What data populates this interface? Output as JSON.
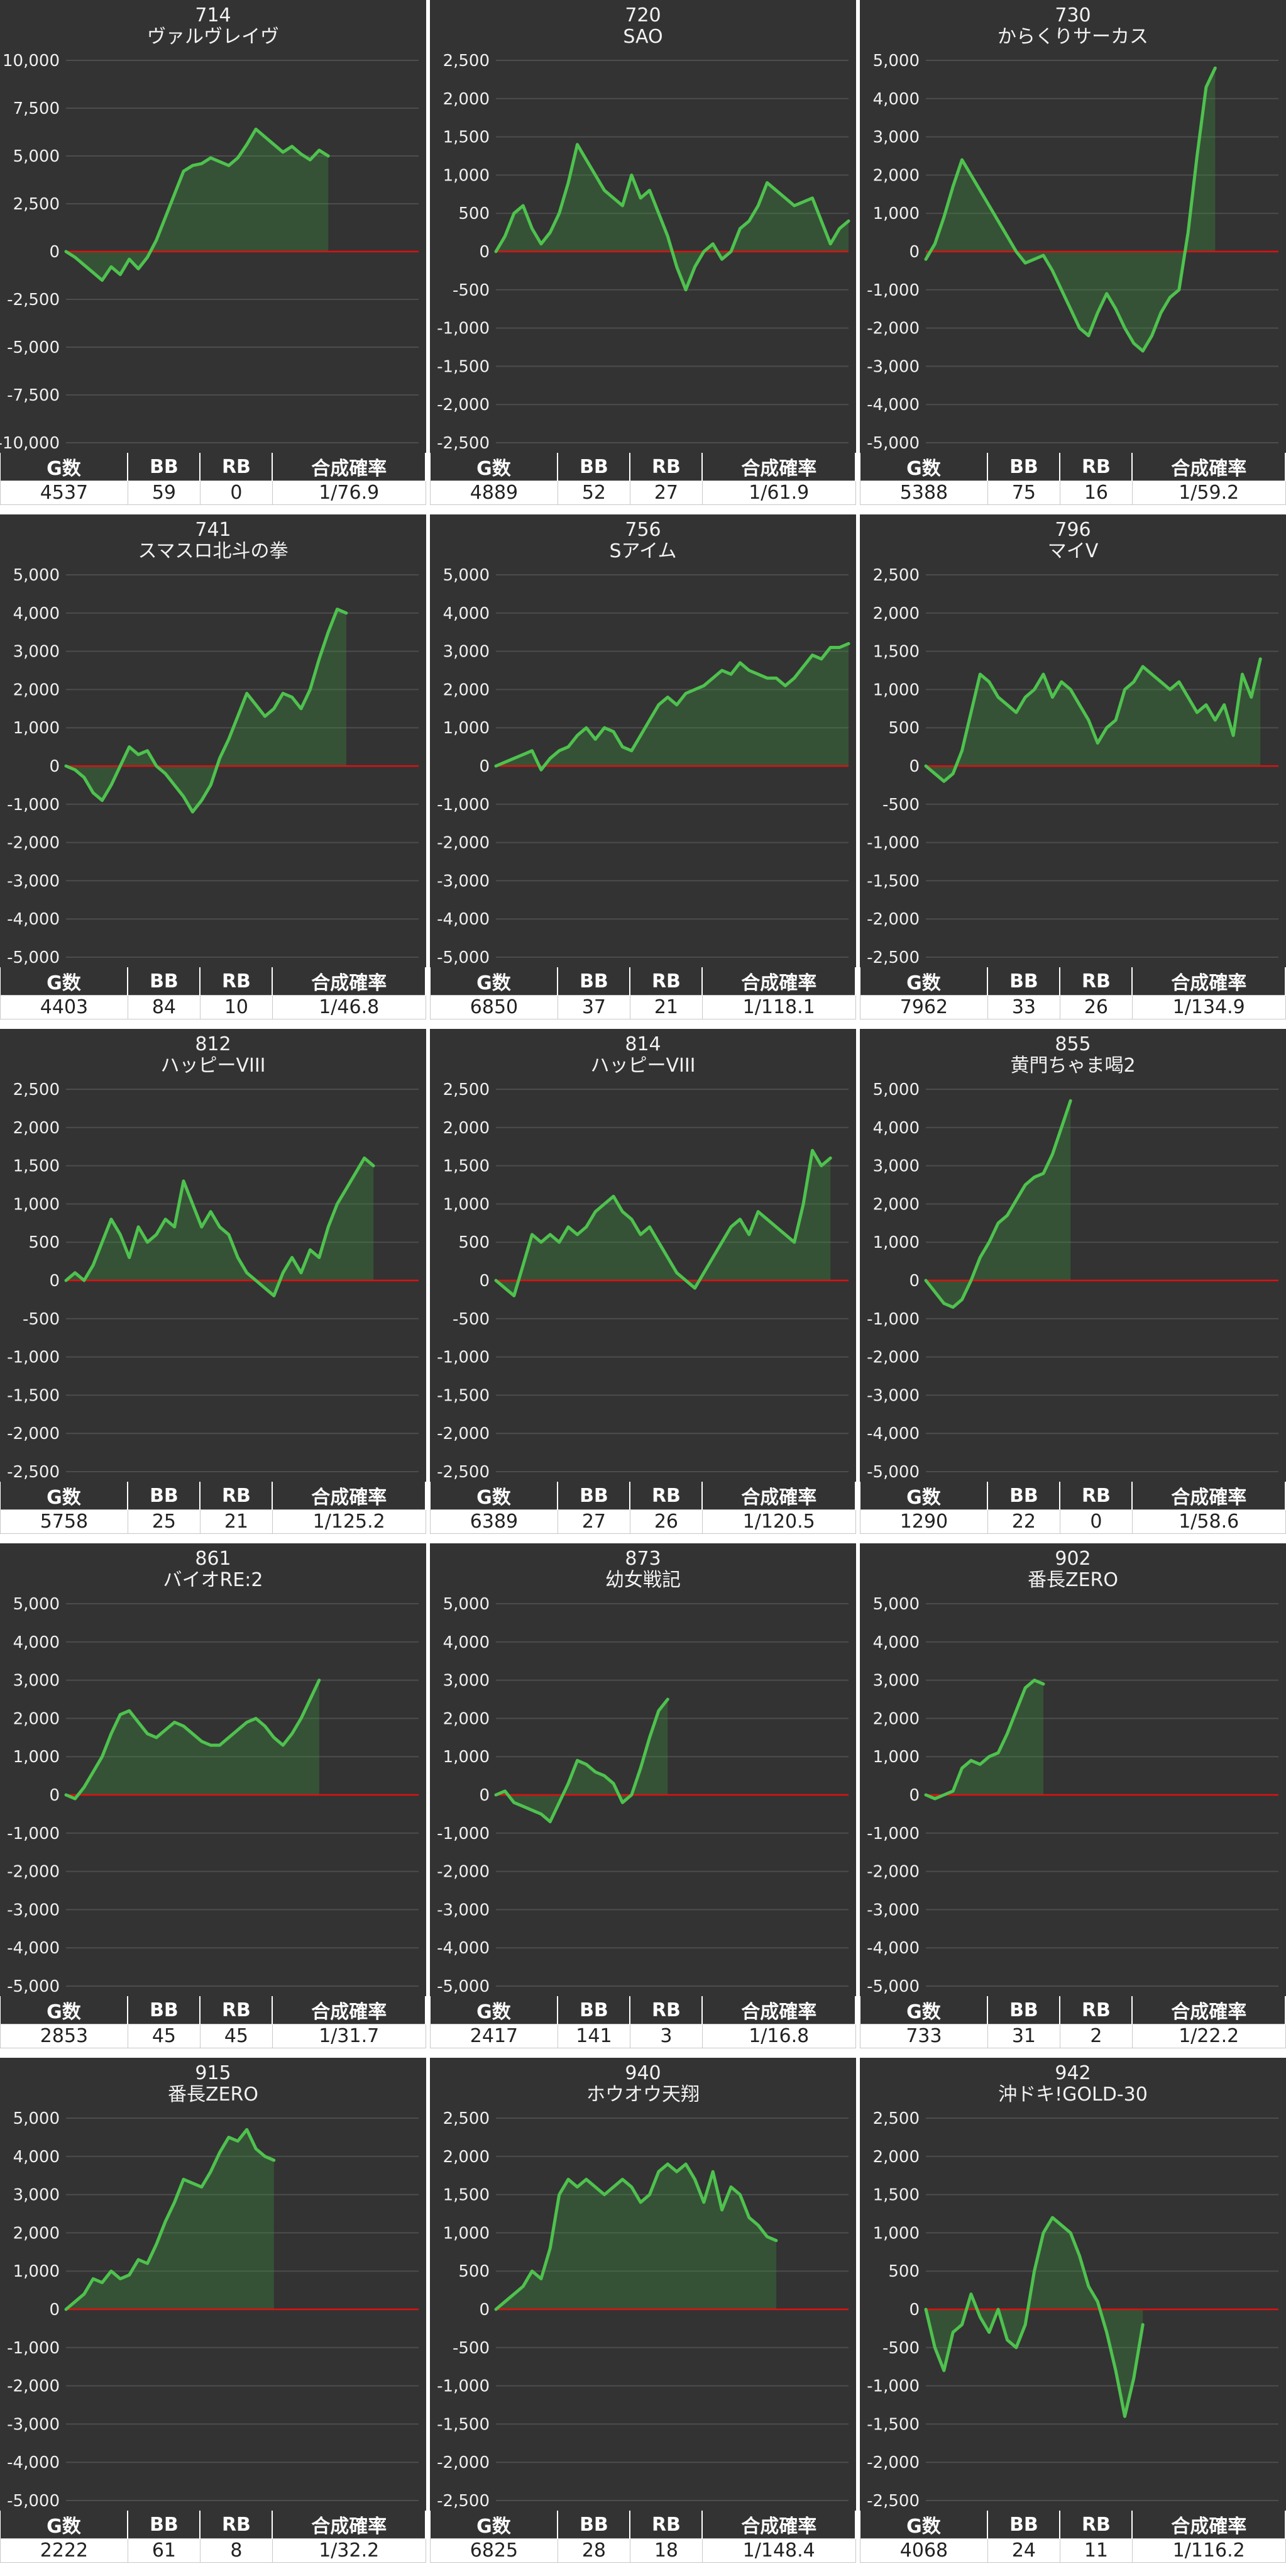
{
  "table_headers": [
    "G数",
    "BB",
    "RB",
    "合成確率"
  ],
  "colors": {
    "background": "#333333",
    "line": "#4ec24e",
    "fill": "rgba(62,150,62,0.32)",
    "zero_line": "#e01010",
    "grid": "#4d4d4d"
  },
  "chart_data": [
    {
      "type": "area",
      "id": "714",
      "title": "ヴァルヴレイヴ",
      "ylim": [
        -10000,
        10000
      ],
      "yticks": [
        "10,000",
        "7,500",
        "5,000",
        "2,500",
        "0",
        "-2,500",
        "-5,000",
        "-7,500",
        "-10,000"
      ],
      "values": [
        0,
        -300,
        -700,
        -1100,
        -1500,
        -800,
        -1200,
        -400,
        -900,
        -300,
        600,
        1800,
        3000,
        4200,
        4500,
        4600,
        4900,
        4700,
        4500,
        4900,
        5600,
        6400,
        6000,
        5600,
        5200,
        5500,
        5100,
        4800,
        5300,
        5000
      ],
      "stats": {
        "g": "4537",
        "bb": "59",
        "rb": "0",
        "prob": "1/76.9"
      }
    },
    {
      "type": "area",
      "id": "720",
      "title": "SAO",
      "ylim": [
        -2500,
        2500
      ],
      "yticks": [
        "2,500",
        "2,000",
        "1,500",
        "1,000",
        "500",
        "0",
        "-500",
        "-1,000",
        "-1,500",
        "-2,000",
        "-2,500"
      ],
      "values": [
        0,
        200,
        500,
        600,
        300,
        100,
        250,
        500,
        900,
        1400,
        1200,
        1000,
        800,
        700,
        600,
        1000,
        700,
        800,
        500,
        200,
        -200,
        -500,
        -200,
        0,
        100,
        -100,
        0,
        300,
        400,
        600,
        900,
        800,
        700,
        600,
        650,
        700,
        400,
        100,
        300,
        400
      ],
      "stats": {
        "g": "4889",
        "bb": "52",
        "rb": "27",
        "prob": "1/61.9"
      }
    },
    {
      "type": "area",
      "id": "730",
      "title": "からくりサーカス",
      "ylim": [
        -5000,
        5000
      ],
      "yticks": [
        "5,000",
        "4,000",
        "3,000",
        "2,000",
        "1,000",
        "0",
        "-1,000",
        "-2,000",
        "-3,000",
        "-4,000",
        "-5,000"
      ],
      "values": [
        -200,
        200,
        900,
        1700,
        2400,
        2000,
        1600,
        1200,
        800,
        400,
        0,
        -300,
        -200,
        -100,
        -500,
        -1000,
        -1500,
        -2000,
        -2200,
        -1600,
        -1100,
        -1500,
        -2000,
        -2400,
        -2600,
        -2200,
        -1600,
        -1200,
        -1000,
        500,
        2500,
        4300,
        4800
      ],
      "stats": {
        "g": "5388",
        "bb": "75",
        "rb": "16",
        "prob": "1/59.2"
      }
    },
    {
      "type": "area",
      "id": "741",
      "title": "スマスロ北斗の拳",
      "ylim": [
        -5000,
        5000
      ],
      "yticks": [
        "5,000",
        "4,000",
        "3,000",
        "2,000",
        "1,000",
        "0",
        "-1,000",
        "-2,000",
        "-3,000",
        "-4,000",
        "-5,000"
      ],
      "values": [
        0,
        -100,
        -300,
        -700,
        -900,
        -500,
        0,
        500,
        300,
        400,
        0,
        -200,
        -500,
        -800,
        -1200,
        -900,
        -500,
        200,
        700,
        1300,
        1900,
        1600,
        1300,
        1500,
        1900,
        1800,
        1500,
        2000,
        2800,
        3500,
        4100,
        4000
      ],
      "stats": {
        "g": "4403",
        "bb": "84",
        "rb": "10",
        "prob": "1/46.8"
      }
    },
    {
      "type": "area",
      "id": "756",
      "title": "Sアイム",
      "ylim": [
        -5000,
        5000
      ],
      "yticks": [
        "5,000",
        "4,000",
        "3,000",
        "2,000",
        "1,000",
        "0",
        "-1,000",
        "-2,000",
        "-3,000",
        "-4,000",
        "-5,000"
      ],
      "values": [
        0,
        100,
        200,
        300,
        400,
        -100,
        200,
        400,
        500,
        800,
        1000,
        700,
        1000,
        900,
        500,
        400,
        800,
        1200,
        1600,
        1800,
        1600,
        1900,
        2000,
        2100,
        2300,
        2500,
        2400,
        2700,
        2500,
        2400,
        2300,
        2300,
        2100,
        2300,
        2600,
        2900,
        2800,
        3100,
        3100,
        3200
      ],
      "stats": {
        "g": "6850",
        "bb": "37",
        "rb": "21",
        "prob": "1/118.1"
      }
    },
    {
      "type": "area",
      "id": "796",
      "title": "マイV",
      "ylim": [
        -2500,
        2500
      ],
      "yticks": [
        "2,500",
        "2,000",
        "1,500",
        "1,000",
        "500",
        "0",
        "-500",
        "-1,000",
        "-1,500",
        "-2,000",
        "-2,500"
      ],
      "values": [
        0,
        -100,
        -200,
        -100,
        200,
        700,
        1200,
        1100,
        900,
        800,
        700,
        900,
        1000,
        1200,
        900,
        1100,
        1000,
        800,
        600,
        300,
        500,
        600,
        1000,
        1100,
        1300,
        1200,
        1100,
        1000,
        1100,
        900,
        700,
        800,
        600,
        800,
        400,
        1200,
        900,
        1400
      ],
      "stats": {
        "g": "7962",
        "bb": "33",
        "rb": "26",
        "prob": "1/134.9"
      }
    },
    {
      "type": "area",
      "id": "812",
      "title": "ハッピーVIII",
      "ylim": [
        -2500,
        2500
      ],
      "yticks": [
        "2,500",
        "2,000",
        "1,500",
        "1,000",
        "500",
        "0",
        "-500",
        "-1,000",
        "-1,500",
        "-2,000",
        "-2,500"
      ],
      "values": [
        0,
        100,
        0,
        200,
        500,
        800,
        600,
        300,
        700,
        500,
        600,
        800,
        700,
        1300,
        1000,
        700,
        900,
        700,
        600,
        300,
        100,
        0,
        -100,
        -200,
        100,
        300,
        100,
        400,
        300,
        700,
        1000,
        1200,
        1400,
        1600,
        1500
      ],
      "stats": {
        "g": "5758",
        "bb": "25",
        "rb": "21",
        "prob": "1/125.2"
      }
    },
    {
      "type": "area",
      "id": "814",
      "title": "ハッピーVIII",
      "ylim": [
        -2500,
        2500
      ],
      "yticks": [
        "2,500",
        "2,000",
        "1,500",
        "1,000",
        "500",
        "0",
        "-500",
        "-1,000",
        "-1,500",
        "-2,000",
        "-2,500"
      ],
      "values": [
        0,
        -100,
        -200,
        200,
        600,
        500,
        600,
        500,
        700,
        600,
        700,
        900,
        1000,
        1100,
        900,
        800,
        600,
        700,
        500,
        300,
        100,
        0,
        -100,
        100,
        300,
        500,
        700,
        800,
        600,
        900,
        800,
        700,
        600,
        500,
        1000,
        1700,
        1500,
        1600
      ],
      "stats": {
        "g": "6389",
        "bb": "27",
        "rb": "26",
        "prob": "1/120.5"
      }
    },
    {
      "type": "area",
      "id": "855",
      "title": "黄門ちゃま喝2",
      "ylim": [
        -5000,
        5000
      ],
      "yticks": [
        "5,000",
        "4,000",
        "3,000",
        "2,000",
        "1,000",
        "0",
        "-1,000",
        "-2,000",
        "-3,000",
        "-4,000",
        "-5,000"
      ],
      "values": [
        0,
        -300,
        -600,
        -700,
        -500,
        0,
        600,
        1000,
        1500,
        1700,
        2100,
        2500,
        2700,
        2800,
        3300,
        4000,
        4700
      ],
      "stats": {
        "g": "1290",
        "bb": "22",
        "rb": "0",
        "prob": "1/58.6"
      }
    },
    {
      "type": "area",
      "id": "861",
      "title": "バイオRE:2",
      "ylim": [
        -5000,
        5000
      ],
      "yticks": [
        "5,000",
        "4,000",
        "3,000",
        "2,000",
        "1,000",
        "0",
        "-1,000",
        "-2,000",
        "-3,000",
        "-4,000",
        "-5,000"
      ],
      "values": [
        0,
        -100,
        200,
        600,
        1000,
        1600,
        2100,
        2200,
        1900,
        1600,
        1500,
        1700,
        1900,
        1800,
        1600,
        1400,
        1300,
        1300,
        1500,
        1700,
        1900,
        2000,
        1800,
        1500,
        1300,
        1600,
        2000,
        2500,
        3000
      ],
      "stats": {
        "g": "2853",
        "bb": "45",
        "rb": "45",
        "prob": "1/31.7"
      }
    },
    {
      "type": "area",
      "id": "873",
      "title": "幼女戦記",
      "ylim": [
        -5000,
        5000
      ],
      "yticks": [
        "5,000",
        "4,000",
        "3,000",
        "2,000",
        "1,000",
        "0",
        "-1,000",
        "-2,000",
        "-3,000",
        "-4,000",
        "-5,000"
      ],
      "values": [
        0,
        100,
        -200,
        -300,
        -400,
        -500,
        -700,
        -200,
        300,
        900,
        800,
        600,
        500,
        300,
        -200,
        0,
        700,
        1500,
        2200,
        2500
      ],
      "stats": {
        "g": "2417",
        "bb": "141",
        "rb": "3",
        "prob": "1/16.8"
      }
    },
    {
      "type": "area",
      "id": "902",
      "title": "番長ZERO",
      "ylim": [
        -5000,
        5000
      ],
      "yticks": [
        "5,000",
        "4,000",
        "3,000",
        "2,000",
        "1,000",
        "0",
        "-1,000",
        "-2,000",
        "-3,000",
        "-4,000",
        "-5,000"
      ],
      "values": [
        0,
        -100,
        0,
        100,
        700,
        900,
        800,
        1000,
        1100,
        1600,
        2200,
        2800,
        3000,
        2900
      ],
      "stats": {
        "g": "733",
        "bb": "31",
        "rb": "2",
        "prob": "1/22.2"
      }
    },
    {
      "type": "area",
      "id": "915",
      "title": "番長ZERO",
      "ylim": [
        -5000,
        5000
      ],
      "yticks": [
        "5,000",
        "4,000",
        "3,000",
        "2,000",
        "1,000",
        "0",
        "-1,000",
        "-2,000",
        "-3,000",
        "-4,000",
        "-5,000"
      ],
      "values": [
        0,
        200,
        400,
        800,
        700,
        1000,
        800,
        900,
        1300,
        1200,
        1700,
        2300,
        2800,
        3400,
        3300,
        3200,
        3600,
        4100,
        4500,
        4400,
        4700,
        4200,
        4000,
        3900
      ],
      "stats": {
        "g": "2222",
        "bb": "61",
        "rb": "8",
        "prob": "1/32.2"
      }
    },
    {
      "type": "area",
      "id": "940",
      "title": "ホウオウ天翔",
      "ylim": [
        -2500,
        2500
      ],
      "yticks": [
        "2,500",
        "2,000",
        "1,500",
        "1,000",
        "500",
        "0",
        "-500",
        "-1,000",
        "-1,500",
        "-2,000",
        "-2,500"
      ],
      "values": [
        0,
        100,
        200,
        300,
        500,
        400,
        800,
        1500,
        1700,
        1600,
        1700,
        1600,
        1500,
        1600,
        1700,
        1600,
        1400,
        1500,
        1800,
        1900,
        1800,
        1900,
        1700,
        1400,
        1800,
        1300,
        1600,
        1500,
        1200,
        1100,
        950,
        900
      ],
      "stats": {
        "g": "6825",
        "bb": "28",
        "rb": "18",
        "prob": "1/148.4"
      }
    },
    {
      "type": "area",
      "id": "942",
      "title": "沖ドキ!GOLD-30",
      "ylim": [
        -2500,
        2500
      ],
      "yticks": [
        "2,500",
        "2,000",
        "1,500",
        "1,000",
        "500",
        "0",
        "-500",
        "-1,000",
        "-1,500",
        "-2,000",
        "-2,500"
      ],
      "values": [
        0,
        -500,
        -800,
        -300,
        -200,
        200,
        -100,
        -300,
        0,
        -400,
        -500,
        -200,
        500,
        1000,
        1200,
        1100,
        1000,
        700,
        300,
        100,
        -300,
        -800,
        -1400,
        -900,
        -200
      ],
      "stats": {
        "g": "4068",
        "bb": "24",
        "rb": "11",
        "prob": "1/116.2"
      }
    }
  ]
}
